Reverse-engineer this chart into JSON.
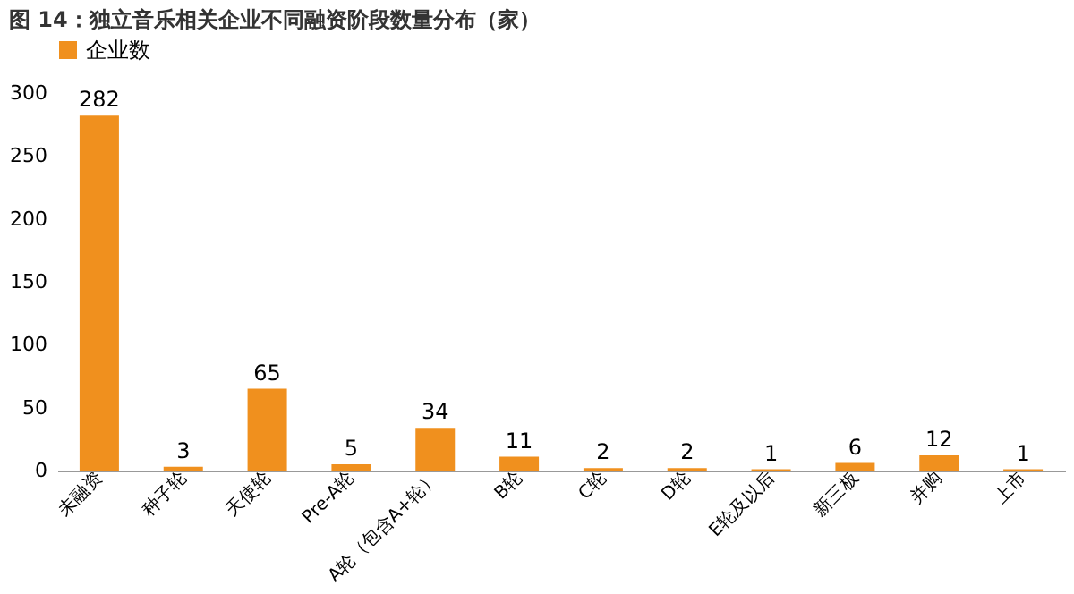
{
  "chart_data": {
    "type": "bar",
    "title": "图 14：独立音乐相关企业不同融资阶段数量分布（家）",
    "categories": [
      "未融资",
      "种子轮",
      "天使轮",
      "Pre-A轮",
      "A轮（包含A+轮）",
      "B轮",
      "C轮",
      "D轮",
      "E轮及以后",
      "新三板",
      "并购",
      "上市"
    ],
    "series": [
      {
        "name": "企业数",
        "color": "#f0901e",
        "values": [
          282,
          3,
          65,
          5,
          34,
          11,
          2,
          2,
          1,
          6,
          12,
          1
        ]
      }
    ],
    "ylim": [
      0,
      300
    ],
    "yticks": [
      0,
      50,
      100,
      150,
      200,
      250,
      300
    ],
    "data_labels": true,
    "legend": "top",
    "grid": false
  }
}
